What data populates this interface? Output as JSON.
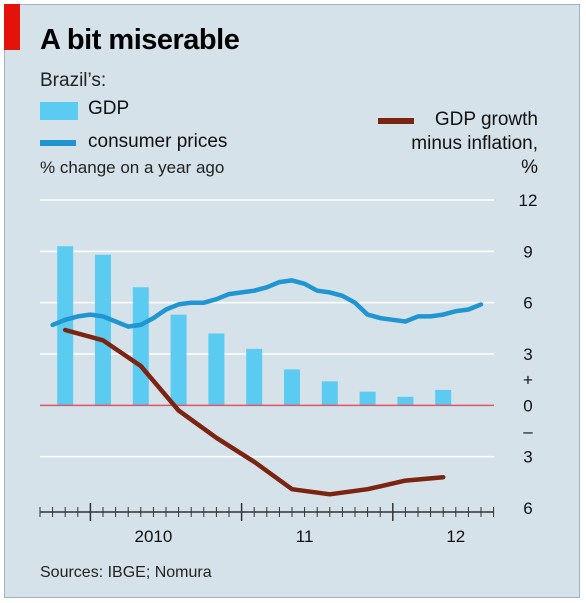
{
  "chart_data": {
    "type": "bar+line",
    "title": "A bit miserable",
    "subtitle": "Brazil’s:",
    "units_note": "% change on a year ago",
    "source": "Sources: IBGE; Nomura",
    "y_axis": {
      "range": [
        -6,
        12
      ],
      "tick_labels": [
        "12",
        "9",
        "6",
        "3",
        "+",
        "0",
        "–",
        "3",
        "6"
      ]
    },
    "x_axis": {
      "year_labels": [
        "2010",
        "11",
        "12"
      ]
    },
    "legend": {
      "gdp": "GDP",
      "consumer_prices": "consumer prices",
      "gdp_minus_inflation": "GDP growth minus inflation, %"
    },
    "series": [
      {
        "name": "GDP",
        "type": "bar",
        "color": "#5ccbf1",
        "x": [
          "2009-Q4",
          "2010-Q1",
          "2010-Q2",
          "2010-Q3",
          "2010-Q4",
          "2011-Q1",
          "2011-Q2",
          "2011-Q3",
          "2011-Q4",
          "2012-Q1",
          "2012-Q2"
        ],
        "values": [
          9.3,
          8.8,
          6.9,
          5.3,
          4.2,
          3.3,
          2.1,
          1.4,
          0.8,
          0.5,
          0.9
        ]
      },
      {
        "name": "consumer prices",
        "type": "line",
        "color": "#1f95d2",
        "x": [
          "2009-10",
          "2009-11",
          "2009-12",
          "2010-01",
          "2010-02",
          "2010-03",
          "2010-04",
          "2010-05",
          "2010-06",
          "2010-07",
          "2010-08",
          "2010-09",
          "2010-10",
          "2010-11",
          "2010-12",
          "2011-01",
          "2011-02",
          "2011-03",
          "2011-04",
          "2011-05",
          "2011-06",
          "2011-07",
          "2011-08",
          "2011-09",
          "2011-10",
          "2011-11",
          "2011-12",
          "2012-01",
          "2012-02",
          "2012-03",
          "2012-04",
          "2012-05",
          "2012-06",
          "2012-07",
          "2012-08"
        ],
        "values": [
          4.7,
          5.0,
          5.2,
          5.3,
          5.2,
          4.9,
          4.6,
          4.7,
          5.1,
          5.6,
          5.9,
          6.0,
          6.0,
          6.2,
          6.5,
          6.6,
          6.7,
          6.9,
          7.2,
          7.3,
          7.1,
          6.7,
          6.6,
          6.4,
          6.0,
          5.3,
          5.1,
          5.0,
          4.9,
          5.2,
          5.2,
          5.3,
          5.5,
          5.6,
          5.9
        ]
      },
      {
        "name": "GDP growth minus inflation, %",
        "type": "line",
        "color": "#7b2411",
        "x": [
          "2009-Q4",
          "2010-Q1",
          "2010-Q2",
          "2010-Q3",
          "2010-Q4",
          "2011-Q1",
          "2011-Q2",
          "2011-Q3",
          "2011-Q4",
          "2012-Q1",
          "2012-Q2"
        ],
        "values": [
          4.4,
          3.8,
          2.3,
          -0.3,
          -1.9,
          -3.3,
          -4.9,
          -5.2,
          -4.9,
          -4.4,
          -4.2
        ]
      }
    ],
    "colors": {
      "background": "#d5e2ea",
      "accent_tab": "#e3120b",
      "zero_line": "#e0556a",
      "grid": "#ffffff"
    }
  }
}
